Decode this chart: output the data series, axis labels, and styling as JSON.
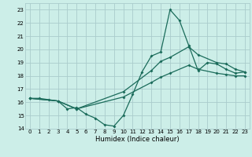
{
  "xlabel": "Humidex (Indice chaleur)",
  "bg_color": "#cceee8",
  "grid_color": "#aacccc",
  "line_color": "#1a6b5a",
  "xlim": [
    -0.5,
    23.5
  ],
  "ylim": [
    14,
    23.5
  ],
  "xticks": [
    0,
    1,
    2,
    3,
    4,
    5,
    6,
    7,
    8,
    9,
    10,
    11,
    12,
    13,
    14,
    15,
    16,
    17,
    18,
    19,
    20,
    21,
    22,
    23
  ],
  "yticks": [
    14,
    15,
    16,
    17,
    18,
    19,
    20,
    21,
    22,
    23
  ],
  "line1_x": [
    0,
    1,
    2,
    3,
    4,
    5,
    6,
    7,
    8,
    9,
    10,
    11,
    12,
    13,
    14,
    15,
    16,
    17,
    18,
    19,
    20,
    21,
    22,
    23
  ],
  "line1_y": [
    16.3,
    16.3,
    16.2,
    16.1,
    15.5,
    15.6,
    15.1,
    14.8,
    14.3,
    14.2,
    15.0,
    16.6,
    18.3,
    19.5,
    19.8,
    23.0,
    22.2,
    20.3,
    18.4,
    19.0,
    18.9,
    18.5,
    18.2,
    18.3
  ],
  "line2_x": [
    0,
    3,
    5,
    10,
    13,
    14,
    15,
    17,
    18,
    20,
    21,
    22,
    23
  ],
  "line2_y": [
    16.3,
    16.1,
    15.5,
    16.8,
    18.4,
    19.1,
    19.4,
    20.2,
    19.6,
    19.0,
    18.9,
    18.5,
    18.3
  ],
  "line3_x": [
    0,
    3,
    5,
    10,
    13,
    14,
    15,
    17,
    18,
    20,
    21,
    22,
    23
  ],
  "line3_y": [
    16.3,
    16.1,
    15.5,
    16.4,
    17.5,
    17.9,
    18.2,
    18.8,
    18.5,
    18.2,
    18.1,
    18.0,
    18.0
  ]
}
